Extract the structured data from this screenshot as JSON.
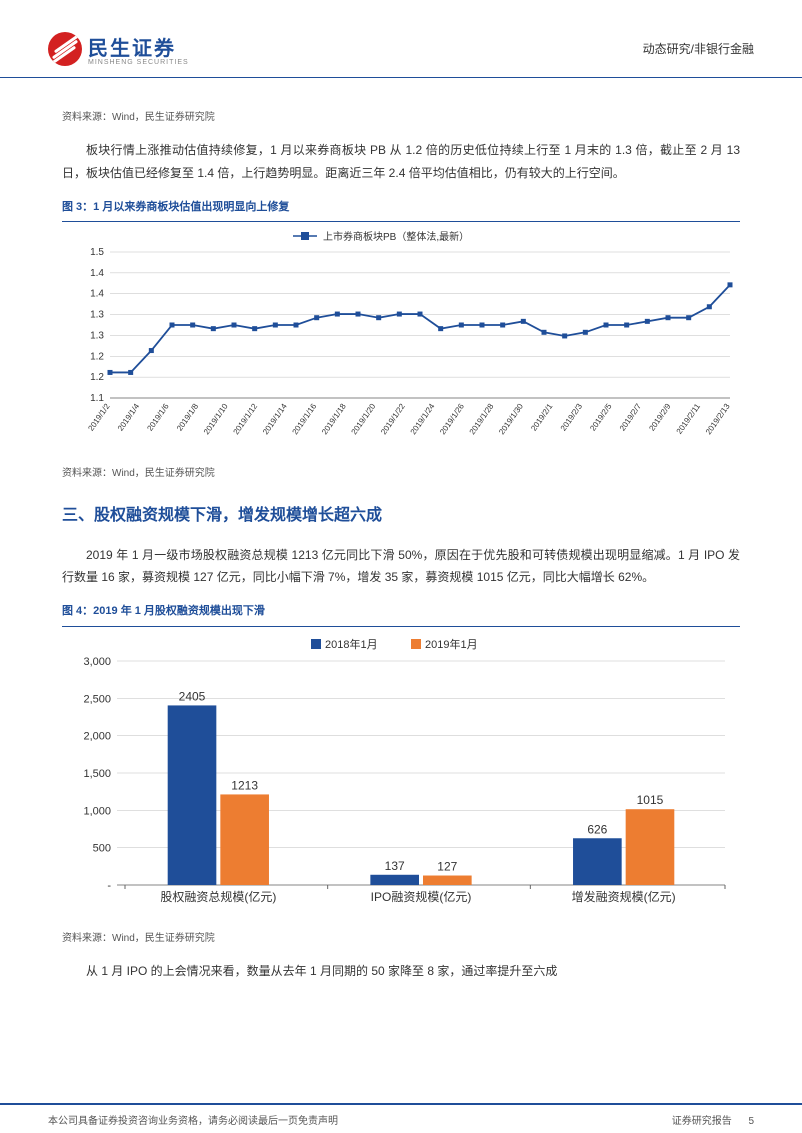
{
  "header": {
    "company_cn": "民生证券",
    "company_en": "MINSHENG SECURITIES",
    "category": "动态研究/非银行金融"
  },
  "source_text": "资料来源：Wind，民生证券研究院",
  "para1": "板块行情上涨推动估值持续修复，1 月以来券商板块 PB 从 1.2 倍的历史低位持续上行至 1 月末的 1.3 倍，截止至 2 月 13 日，板块估值已经修复至 1.4 倍，上行趋势明显。距离近三年 2.4 倍平均估值相比，仍有较大的上行空间。",
  "fig3": {
    "title": "图 3：1 月以来券商板块估值出现明显向上修复",
    "legend": "上市券商板块PB（整体法,最新）",
    "type": "line",
    "ylim": [
      1.1,
      1.5
    ],
    "yticks": [
      1.1,
      1.2,
      1.2,
      1.3,
      1.3,
      1.4,
      1.4,
      1.5
    ],
    "ytick_labels": [
      "1.1",
      "1.2",
      "1.2",
      "1.3",
      "1.3",
      "1.4",
      "1.4",
      "1.5"
    ],
    "x_labels": [
      "2019/1/2",
      "2019/1/4",
      "2019/1/6",
      "2019/1/8",
      "2019/1/10",
      "2019/1/12",
      "2019/1/14",
      "2019/1/16",
      "2019/1/18",
      "2019/1/20",
      "2019/1/22",
      "2019/1/24",
      "2019/1/26",
      "2019/1/28",
      "2019/1/30",
      "2019/2/1",
      "2019/2/3",
      "2019/2/5",
      "2019/2/7",
      "2019/2/9",
      "2019/2/11",
      "2019/2/13"
    ],
    "values": [
      1.17,
      1.17,
      1.23,
      1.3,
      1.3,
      1.29,
      1.3,
      1.29,
      1.3,
      1.3,
      1.32,
      1.33,
      1.33,
      1.32,
      1.33,
      1.33,
      1.29,
      1.3,
      1.3,
      1.3,
      1.31,
      1.28,
      1.27,
      1.28,
      1.3,
      1.3,
      1.31,
      1.32,
      1.32,
      1.35,
      1.41
    ],
    "line_color": "#1f4e99",
    "marker_color": "#1f4e99",
    "grid_color": "#bfbfbf",
    "background_color": "#ffffff",
    "font_size": 10
  },
  "section3_title": "三、股权融资规模下滑，增发规模增长超六成",
  "para2": "2019 年 1 月一级市场股权融资总规模 1213 亿元同比下滑 50%，原因在于优先股和可转债规模出现明显缩减。1 月 IPO 发行数量 16 家，募资规模 127 亿元，同比小幅下滑 7%，增发 35 家，募资规模 1015 亿元，同比大幅增长 62%。",
  "fig4": {
    "title": "图 4：2019 年 1 月股权融资规模出现下滑",
    "type": "bar",
    "legend": [
      "2018年1月",
      "2019年1月"
    ],
    "categories": [
      "股权融资总规模(亿元)",
      "IPO融资规模(亿元)",
      "增发融资规模(亿元)"
    ],
    "series_2018": [
      2405,
      137,
      626
    ],
    "series_2019": [
      1213,
      127,
      1015
    ],
    "colors": {
      "2018": "#1f4e99",
      "2019": "#ed7d31"
    },
    "ylim": [
      0,
      3000
    ],
    "ytick_step": 500,
    "ytick_labels": [
      "-",
      "500",
      "1,000",
      "1,500",
      "2,000",
      "2,500",
      "3,000"
    ],
    "grid_color": "#bfbfbf",
    "label_fontsize": 11,
    "bar_width": 0.35
  },
  "para3": "从 1 月 IPO 的上会情况来看，数量从去年 1 月同期的 50 家降至 8 家，通过率提升至六成",
  "footer": {
    "left": "本公司具备证券投资咨询业务资格，请务必阅读最后一页免责声明",
    "right_label": "证券研究报告",
    "page": "5"
  }
}
